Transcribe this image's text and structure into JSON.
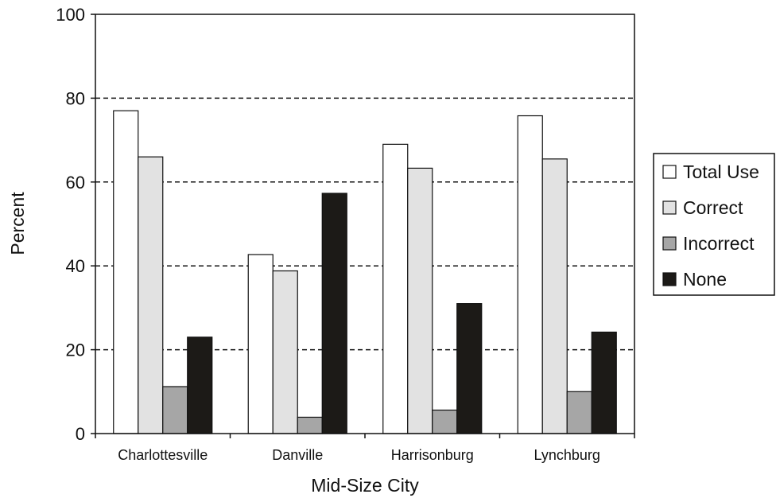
{
  "chart_data": {
    "type": "bar",
    "categories": [
      "Charlottesville",
      "Danville",
      "Harrisonburg",
      "Lynchburg"
    ],
    "series": [
      {
        "name": "Total Use",
        "values": [
          77,
          42.7,
          69,
          75.8
        ],
        "color": "#ffffff"
      },
      {
        "name": "Correct",
        "values": [
          66,
          38.8,
          63.3,
          65.5
        ],
        "color": "#e2e2e2"
      },
      {
        "name": "Incorrect",
        "values": [
          11.2,
          3.9,
          5.6,
          10
        ],
        "color": "#a6a6a6"
      },
      {
        "name": "None",
        "values": [
          23,
          57.3,
          31,
          24.2
        ],
        "color": "#1c1a17"
      }
    ],
    "xlabel": "Mid-Size City",
    "ylabel": "Percent",
    "ylim": [
      0,
      100
    ],
    "yticks": [
      0,
      20,
      40,
      60,
      80,
      100
    ],
    "grid": "dashed horizontal at 20, 40, 60, 80",
    "legend_position": "right"
  }
}
